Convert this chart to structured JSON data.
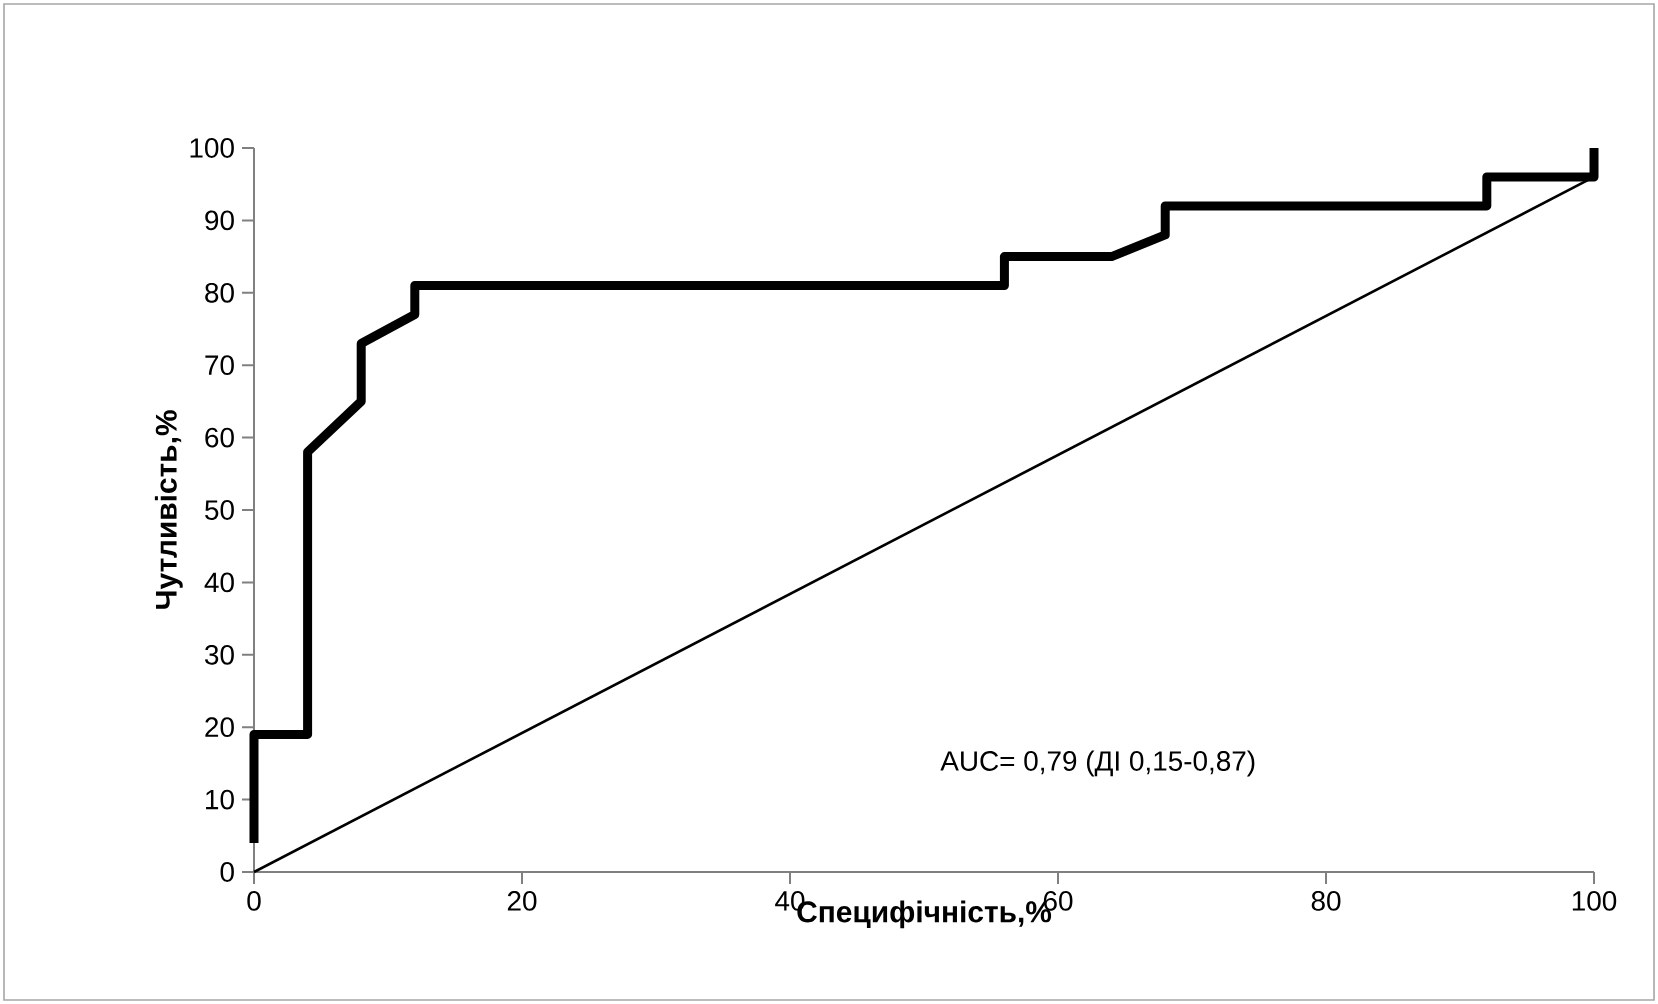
{
  "chart_data": {
    "type": "line",
    "xlabel": "Специфічність,%",
    "ylabel": "Чутливість,%",
    "annotations": [
      "AUC= 0,79 (ДІ  0,15-0,87)"
    ],
    "series": [
      {
        "color": "#000000",
        "x": [
          0,
          0,
          4,
          4,
          8,
          8,
          12,
          12,
          56,
          56,
          64,
          68,
          68,
          92,
          92,
          100,
          100
        ],
        "values": [
          4,
          19,
          19,
          58,
          65,
          73,
          77,
          81,
          81,
          85,
          85,
          88,
          92,
          92,
          96,
          96,
          100
        ]
      },
      {
        "color": "#000000",
        "x": [
          0,
          100
        ],
        "values": [
          0,
          96
        ]
      }
    ],
    "xlim": [
      0,
      100
    ],
    "ylim": [
      0,
      100
    ],
    "xticks": [
      0,
      20,
      40,
      60,
      80,
      100
    ],
    "yticks": [
      0,
      10,
      20,
      30,
      40,
      50,
      60,
      70,
      80,
      90,
      100
    ],
    "grid": false,
    "marker": "none",
    "line_style": "solid"
  }
}
